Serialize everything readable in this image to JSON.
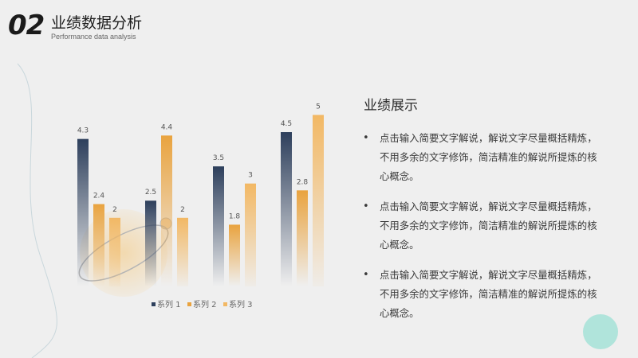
{
  "header": {
    "number": "02",
    "title": "业绩数据分析",
    "subtitle": "Performance data analysis"
  },
  "panel": {
    "title": "业绩展示",
    "bullets": [
      "点击输入简要文字解说，解说文字尽量概括精炼，不用多余的文字修饰，简洁精准的解说所提炼的核心概念。",
      "点击输入简要文字解说，解说文字尽量概括精炼，不用多余的文字修饰，简洁精准的解说所提炼的核心概念。",
      "点击输入简要文字解说，解说文字尽量概括精炼，不用多余的文字修饰，简洁精准的解说所提炼的核心概念。"
    ]
  },
  "colors": {
    "series1": "#2d3f5c",
    "series2": "#e9a33f",
    "series3": "#f2b864"
  },
  "chart_data": {
    "type": "bar",
    "categories": [
      "",
      "",
      "",
      ""
    ],
    "series": [
      {
        "name": "系列 1",
        "values": [
          4.3,
          2.5,
          3.5,
          4.5
        ]
      },
      {
        "name": "系列 2",
        "values": [
          2.4,
          4.4,
          1.8,
          2.8
        ]
      },
      {
        "name": "系列 3",
        "values": [
          2,
          2,
          3,
          5
        ]
      }
    ],
    "ylim": [
      0,
      5.8
    ],
    "grid": false,
    "legend": "bottom"
  }
}
